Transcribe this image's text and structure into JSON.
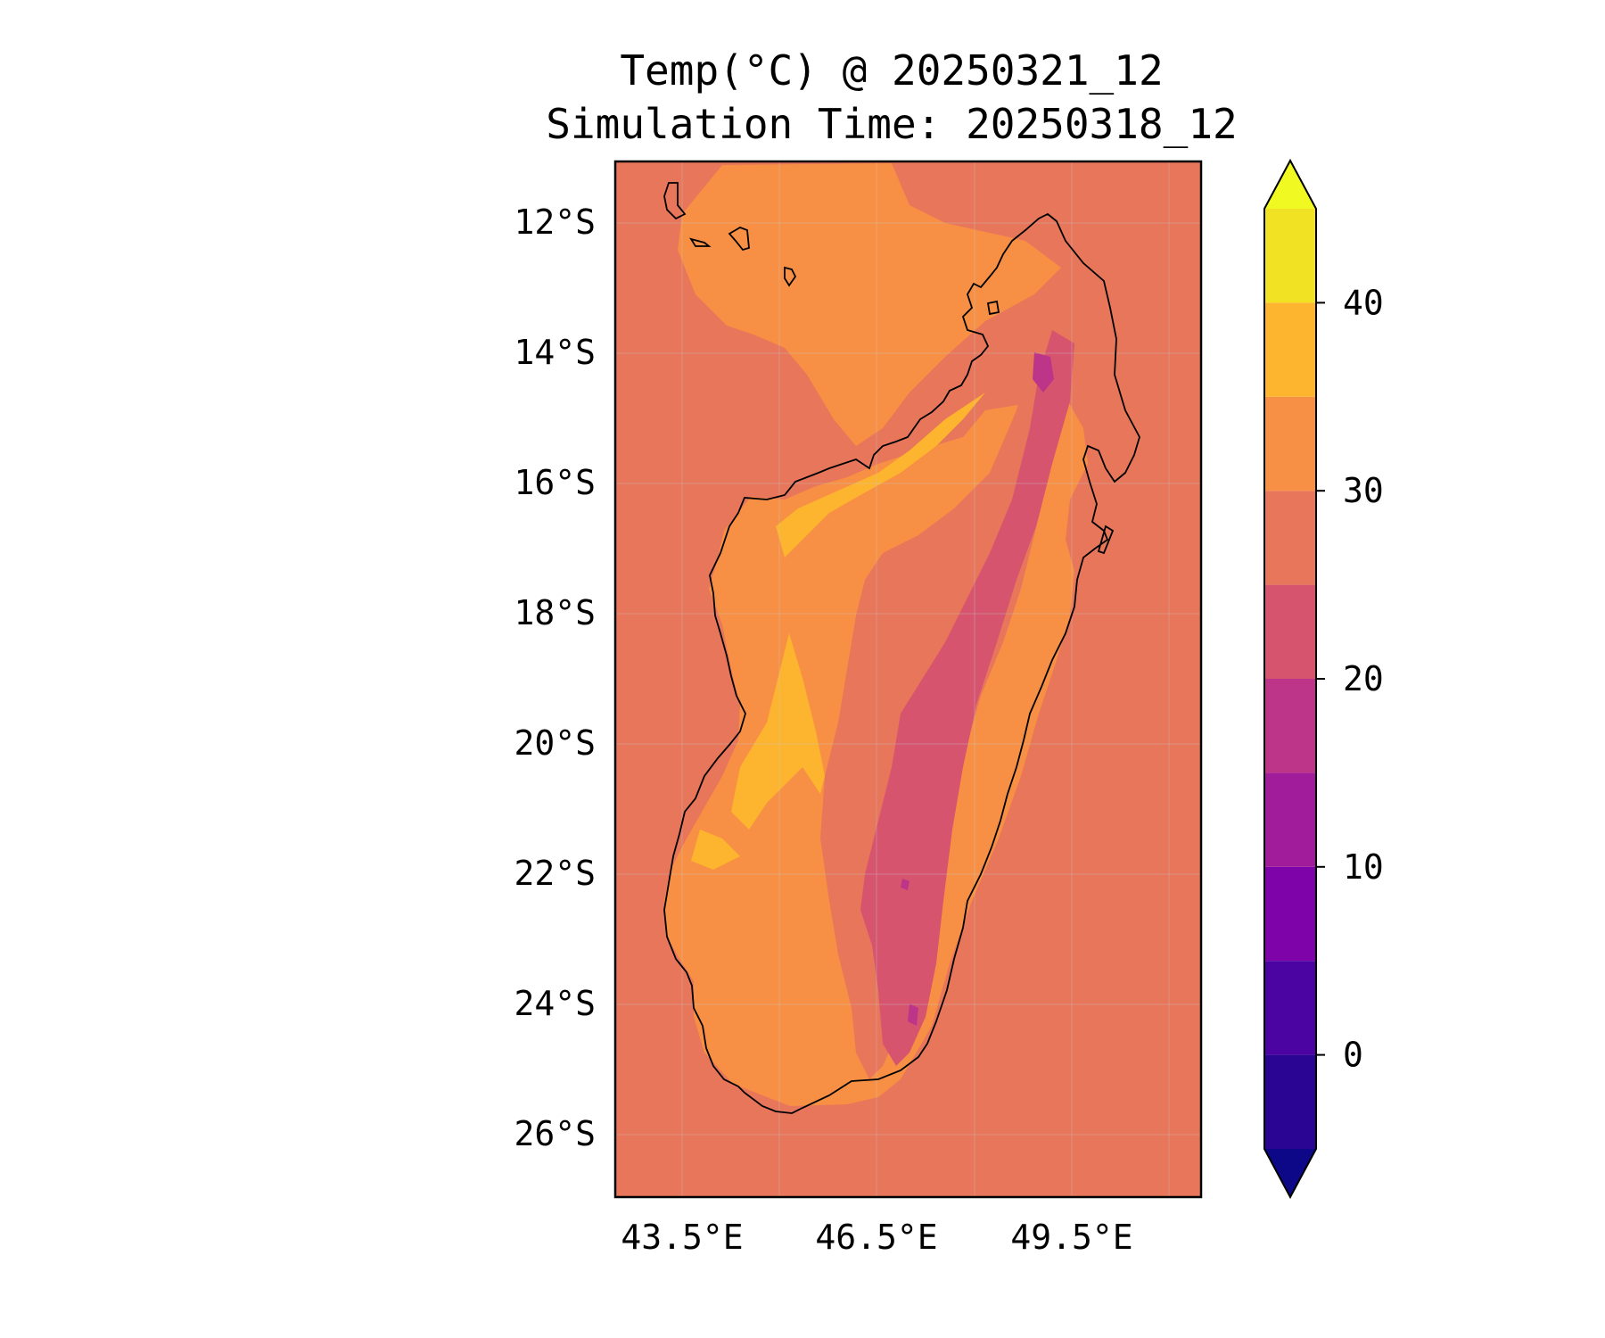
{
  "title": "Temp(°C) @ 20250321_12",
  "subtitle": "Simulation Time: 20250318_12",
  "map": {
    "region": "Madagascar",
    "lon_range": [
      42.5,
      51.5
    ],
    "lat_range": [
      -27,
      -11
    ],
    "lat_ticks": [
      "12°S",
      "14°S",
      "16°S",
      "18°S",
      "20°S",
      "22°S",
      "24°S",
      "26°S"
    ],
    "lon_ticks": [
      "43.5°E",
      "46.5°E",
      "49.5°E"
    ],
    "ocean_color": "#e8765a"
  },
  "colorbar": {
    "ticks": [
      "0",
      "10",
      "20",
      "30",
      "40"
    ],
    "levels": [
      -5,
      0,
      5,
      10,
      15,
      20,
      25,
      30,
      35,
      40,
      45
    ],
    "extend": "both",
    "under_color": "#0d0887",
    "over_color": "#f0f921",
    "colors": [
      "#2a0593",
      "#4b03a1",
      "#7e03a8",
      "#a11c9b",
      "#bc3589",
      "#d6546e",
      "#e8765a",
      "#f79044",
      "#fdb42f",
      "#f2e224"
    ]
  }
}
